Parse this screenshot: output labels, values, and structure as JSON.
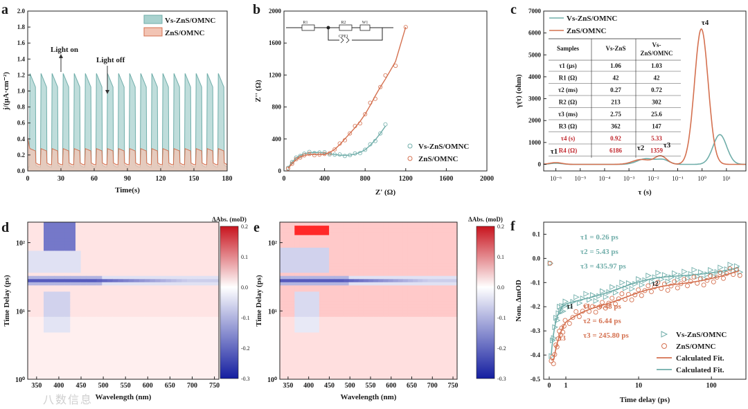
{
  "colors": {
    "blue": "#6fada9",
    "blueFill": "#a9d2cf",
    "red": "#d4704f",
    "redFill": "#f2c4b4",
    "text": "#1a1a1a"
  },
  "watermark": "八数信息",
  "panels": {
    "a": "a",
    "b": "b",
    "c": "c",
    "d": "d",
    "e": "e",
    "f": "f"
  },
  "chart_data": [
    {
      "id": "a",
      "type": "area",
      "xlabel": "Time(s)",
      "ylabel": "j/(μA·cm⁻²)",
      "xlim": [
        0,
        180
      ],
      "ylim": [
        0,
        2.0
      ],
      "xticks": [
        "0",
        "30",
        "60",
        "90",
        "120",
        "150",
        "180"
      ],
      "yticks": [
        "0.0",
        "0.2",
        "0.4",
        "0.6",
        "0.8",
        "1.0",
        "1.2",
        "1.4",
        "1.6",
        "1.8",
        "2.0"
      ],
      "legend": [
        "Vs-ZnS/OMNC",
        "ZnS/OMNC"
      ],
      "annotations": [
        "Light on",
        "Light off"
      ],
      "cycle_s": 10,
      "series": [
        {
          "name": "Vs-ZnS/OMNC",
          "on_peak": 1.22,
          "on_end": 1.05,
          "off": 0.05
        },
        {
          "name": "ZnS/OMNC",
          "on_peak": 0.28,
          "on_end": 0.25,
          "off": 0.08,
          "initial": 0.42
        }
      ]
    },
    {
      "id": "b",
      "type": "scatter",
      "xlabel": "Z' (Ω)",
      "ylabel": "Z'' (Ω)",
      "xlim": [
        0,
        2000
      ],
      "ylim": [
        0,
        2000
      ],
      "xticks": [
        "0",
        "400",
        "800",
        "1200",
        "1600",
        "2000"
      ],
      "yticks": [
        "0",
        "400",
        "800",
        "1200",
        "1600",
        "2000"
      ],
      "legend": [
        "Vs-ZnS/OMNC",
        "ZnS/OMNC"
      ],
      "circuit": [
        "R1",
        "R2",
        "W1",
        "CPE1"
      ],
      "series": [
        {
          "name": "Vs-ZnS/OMNC",
          "x": [
            40,
            80,
            120,
            160,
            200,
            250,
            300,
            350,
            400,
            450,
            500,
            550,
            600,
            650,
            700,
            750,
            800,
            850,
            900,
            950,
            1000
          ],
          "y": [
            40,
            110,
            160,
            195,
            215,
            228,
            232,
            230,
            225,
            215,
            205,
            198,
            195,
            198,
            210,
            232,
            265,
            320,
            390,
            470,
            560
          ]
        },
        {
          "name": "ZnS/OMNC",
          "x": [
            40,
            80,
            120,
            160,
            200,
            250,
            300,
            350,
            400,
            450,
            500,
            550,
            600,
            650,
            700,
            750,
            800,
            850,
            900,
            950,
            1000,
            1100,
            1200
          ],
          "y": [
            30,
            90,
            140,
            175,
            195,
            205,
            205,
            205,
            205,
            230,
            270,
            330,
            400,
            470,
            540,
            620,
            710,
            820,
            940,
            1050,
            1150,
            1370,
            1800
          ]
        }
      ]
    },
    {
      "id": "c",
      "type": "line",
      "xlabel": "τ (s)",
      "ylabel": "γ(τ) (ohm)",
      "xscale": "log",
      "xlim": [
        -6.5,
        1.8
      ],
      "ylim": [
        -300,
        7000
      ],
      "xticks": [
        "10⁻⁶",
        "10⁻⁵",
        "10⁻⁴",
        "10⁻³",
        "10⁻²",
        "10⁻¹",
        "10⁰",
        "10¹"
      ],
      "yticks": [
        "0",
        "1000",
        "2000",
        "3000",
        "4000",
        "5000",
        "6000",
        "7000"
      ],
      "legend": [
        "Vs-ZnS/OMNC",
        "ZnS/OMNC"
      ],
      "peak_labels": [
        "τ1",
        "τ2",
        "τ3",
        "τ4"
      ],
      "table": {
        "headers": [
          "Samples",
          "Vs-ZnS",
          "Vs-ZnS/OMNC"
        ],
        "rows": [
          [
            "τ1 (μs)",
            "1.06",
            "1.03"
          ],
          [
            "R1 (Ω)",
            "42",
            "42"
          ],
          [
            "τ2 (ms)",
            "0.27",
            "0.72"
          ],
          [
            "R2 (Ω)",
            "213",
            "302"
          ],
          [
            "τ3 (ms)",
            "2.75",
            "25.6"
          ],
          [
            "R3 (Ω)",
            "362",
            "147"
          ],
          [
            "τ4 (s)",
            "0.92",
            "5.33"
          ],
          [
            "R4 (Ω)",
            "6186",
            "1359"
          ]
        ]
      },
      "series": [
        {
          "name": "Vs-ZnS/OMNC",
          "peaks": [
            [
              -6,
              50
            ],
            [
              -2.3,
              260
            ],
            [
              -1.6,
              200
            ],
            [
              0.73,
              1359
            ]
          ]
        },
        {
          "name": "ZnS/OMNC",
          "peaks": [
            [
              -6,
              80
            ],
            [
              -2.5,
              220
            ],
            [
              -1.7,
              380
            ],
            [
              -0.03,
              6186
            ]
          ]
        }
      ]
    },
    {
      "id": "d",
      "type": "heatmap",
      "xlabel": "Wavelength (nm)",
      "ylabel": "Time Delay (ps)",
      "colorbar_label": "ΔAbs. (moD)",
      "xticks": [
        "350",
        "400",
        "450",
        "500",
        "550",
        "600",
        "650",
        "700",
        "750"
      ],
      "yticks": [
        "10⁰",
        "10¹",
        "10²"
      ],
      "cbticks": [
        "0.2",
        "0.1",
        "0.0",
        "-0.1",
        "-0.2",
        "-0.3"
      ],
      "clim": [
        -0.3,
        0.2
      ]
    },
    {
      "id": "e",
      "type": "heatmap",
      "xlabel": "Wavelength (nm)",
      "ylabel": "Time Delay (ps)",
      "colorbar_label": "ΔAbs. (moD)",
      "xticks": [
        "350",
        "400",
        "450",
        "500",
        "550",
        "600",
        "650",
        "700",
        "750"
      ],
      "yticks": [
        "10⁰",
        "10¹",
        "10²"
      ],
      "cbticks": [
        "0.2",
        "0.1",
        "0.0",
        "-0.1",
        "-0.2",
        "-0.3"
      ],
      "clim": [
        -0.3,
        0.2
      ]
    },
    {
      "id": "f",
      "type": "scatter",
      "xlabel": "Time delay (ps)",
      "ylabel": "Nom. ΔmOD",
      "ylim": [
        -0.5,
        0.15
      ],
      "xticks": [
        "0",
        "1",
        "10",
        "100"
      ],
      "yticks": [
        "0.1",
        "0.0",
        "-0.1",
        "-0.2",
        "-0.3",
        "-0.4",
        "-0.5"
      ],
      "legend": [
        "Vs-ZnS/OMNC",
        "ZnS/OMNC",
        "Calculated Fit.",
        "Calculated Fit."
      ],
      "fit_labels": {
        "blue": [
          "τ1 = 0.26 ps",
          "τ2 = 5.43 ps",
          "τ3 = 435.97 ps"
        ],
        "red": [
          "τ1 = 0.48 ps",
          "τ2 = 6.44 ps",
          "τ3 = 245.80 ps"
        ]
      },
      "markers": [
        "τ1",
        "τ2",
        "τ3"
      ],
      "series": [
        {
          "name": "Vs-ZnS/OMNC",
          "tau_ps": [
            0.26,
            5.43,
            435.97
          ],
          "amp": [
            -0.2,
            -0.12,
            -0.1
          ]
        },
        {
          "name": "ZnS/OMNC",
          "tau_ps": [
            0.48,
            6.44,
            245.8
          ],
          "amp": [
            -0.25,
            -0.12,
            -0.11
          ]
        }
      ]
    }
  ]
}
